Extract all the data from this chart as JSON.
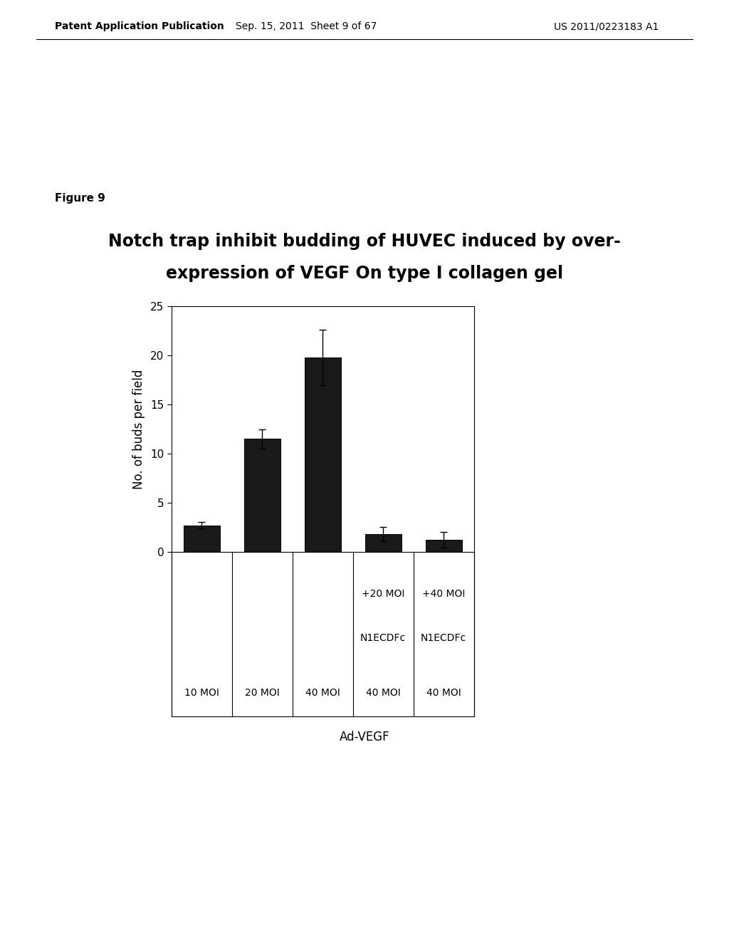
{
  "title_line1": "Notch trap inhibit budding of HUVEC induced by over-",
  "title_line2": "expression of VEGF On type I collagen gel",
  "figure_label": "Figure 9",
  "header_left": "Patent Application Publication",
  "header_mid": "Sep. 15, 2011  Sheet 9 of 67",
  "header_right": "US 2011/0223183 A1",
  "ylabel": "No. of buds per field",
  "xlabel": "Ad-VEGF",
  "bar_values": [
    2.7,
    11.5,
    19.8,
    1.8,
    1.2
  ],
  "bar_errors": [
    0.3,
    1.0,
    2.8,
    0.7,
    0.8
  ],
  "bar_color": "#1a1a1a",
  "bar_width": 0.6,
  "xlim": [
    -0.5,
    4.5
  ],
  "ylim": [
    0,
    25
  ],
  "yticks": [
    0,
    5,
    10,
    15,
    20,
    25
  ],
  "bottom_labels": [
    "10 MOI",
    "20 MOI",
    "40 MOI",
    "40 MOI",
    "40 MOI"
  ],
  "mid_labels": [
    "",
    "",
    "",
    "N1ECDFc",
    "N1ECDFc"
  ],
  "top_labels": [
    "",
    "",
    "",
    "+20 MOI",
    "+40 MOI"
  ],
  "background_color": "#ffffff",
  "plot_bg_color": "#ffffff",
  "fig_width": 10.24,
  "fig_height": 13.2,
  "dpi": 100
}
